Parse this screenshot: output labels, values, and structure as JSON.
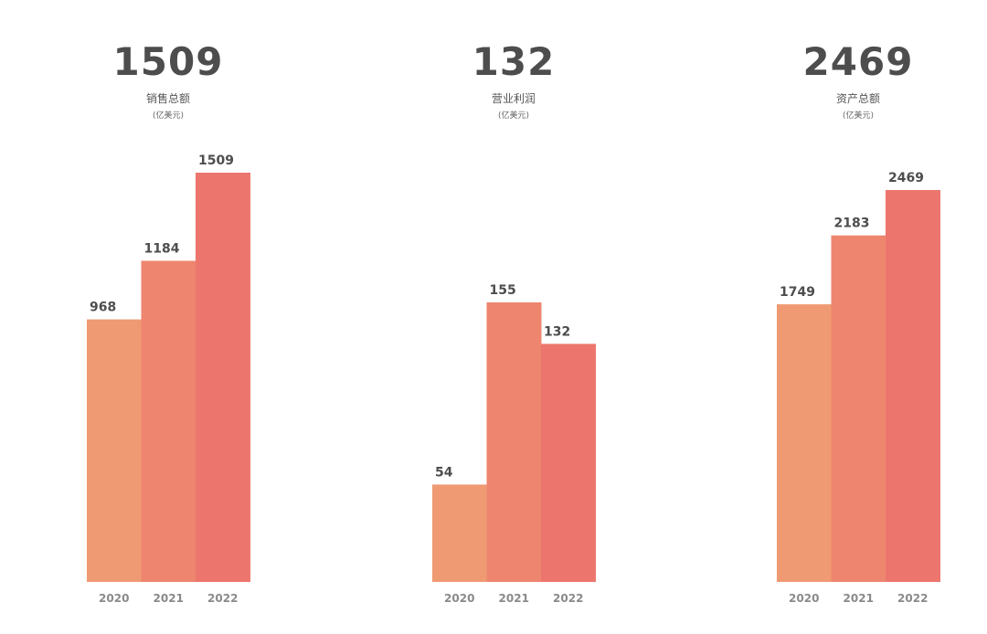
{
  "colors": {
    "bar_2020": "#ef9a72",
    "bar_2021": "#ee866f",
    "bar_2022": "#ec766d"
  },
  "chart_data": [
    {
      "type": "bar",
      "headline": "1509",
      "title": "销售总额",
      "unit": "(亿美元)",
      "categories": [
        "2020",
        "2021",
        "2022"
      ],
      "values": [
        968,
        1184,
        1509
      ]
    },
    {
      "type": "bar",
      "headline": "132",
      "title": "营业利润",
      "unit": "(亿美元)",
      "categories": [
        "2020",
        "2021",
        "2022"
      ],
      "values": [
        54,
        155,
        132
      ]
    },
    {
      "type": "bar",
      "headline": "2469",
      "title": "资产总额",
      "unit": "(亿美元)",
      "categories": [
        "2020",
        "2021",
        "2022"
      ],
      "values": [
        1749,
        2183,
        2469
      ]
    }
  ]
}
